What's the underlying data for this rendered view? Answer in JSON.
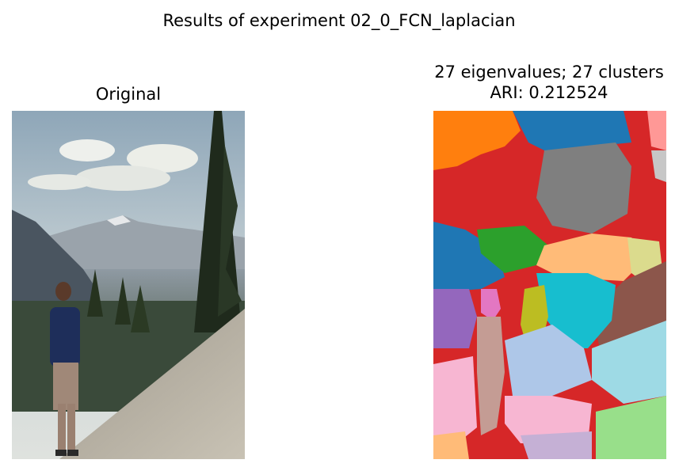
{
  "figure": {
    "suptitle": "Results of experiment 02_0_FCN_laplacian"
  },
  "left_panel": {
    "title": "Original"
  },
  "right_panel": {
    "title_line1": "27 eigenvalues; 27 clusters",
    "title_line2": "ARI: 0.212524",
    "cluster_colors": [
      "#1f77b4",
      "#ff7f0e",
      "#2ca02c",
      "#d62728",
      "#9467bd",
      "#8c564b",
      "#e377c2",
      "#7f7f7f",
      "#bcbd22",
      "#17becf",
      "#aec7e8",
      "#ffbb78",
      "#98df8a",
      "#ff9896",
      "#c5b0d5",
      "#c49c94",
      "#f7b6d2",
      "#c7c7c7",
      "#dbdb8d",
      "#9edae5"
    ]
  }
}
